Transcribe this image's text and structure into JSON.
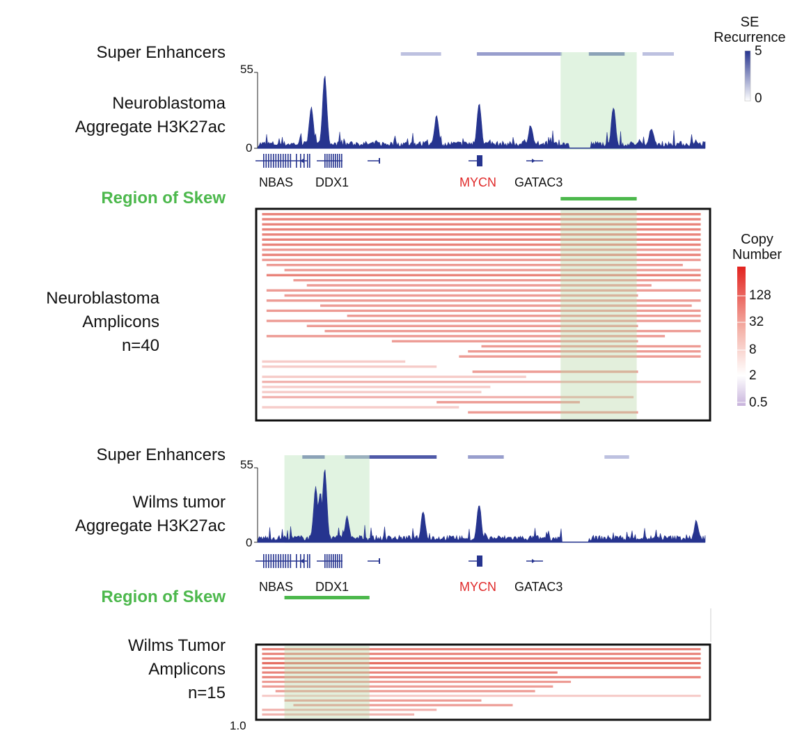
{
  "labels": {
    "se_label_1": "Super Enhancers",
    "nb_track_1": "Neuroblastoma",
    "nb_track_2": "Aggregate H3K27ac",
    "skew_1": "Region of Skew",
    "nb_amp_1": "Neuroblastoma",
    "nb_amp_2": "Amplicons",
    "nb_amp_3": "n=40",
    "se_label_2": "Super Enhancers",
    "wt_track_1": "Wilms tumor",
    "wt_track_2": "Aggregate H3K27ac",
    "skew_2": "Region of Skew",
    "wt_amp_1": "Wilms Tumor",
    "wt_amp_2": "Amplicons",
    "wt_amp_3": "n=15"
  },
  "genes": {
    "nbas": "NBAS",
    "ddx1": "DDX1",
    "mycn": "MYCN",
    "gatac3": "GATAC3"
  },
  "axis": {
    "nb_max": "55",
    "nb_min": "0",
    "wt_max": "55",
    "wt_min": "0",
    "cut_text": "1.0"
  },
  "legend_se": {
    "title_1": "SE",
    "title_2": "Recurrence",
    "max": "5",
    "min": "0"
  },
  "legend_cn": {
    "title_1": "Copy",
    "title_2": "Number",
    "ticks": [
      "128",
      "32",
      "8",
      "2",
      "0.5"
    ]
  },
  "colors": {
    "signal": "#26348f",
    "skew": "#4cb84c",
    "highlight": "#cdebcd",
    "mycn": "#e02a2a"
  },
  "chart_data": [
    {
      "type": "area",
      "title": "Neuroblastoma Aggregate H3K27ac",
      "ylim": [
        0,
        55
      ],
      "genomic_range": [
        0,
        100
      ],
      "super_enhancers": [
        {
          "start": 32,
          "end": 41,
          "recurrence": 1
        },
        {
          "start": 49,
          "end": 68,
          "recurrence": 2
        },
        {
          "start": 74,
          "end": 82,
          "recurrence": 5
        },
        {
          "start": 86,
          "end": 93,
          "recurrence": 1
        }
      ],
      "region_of_skew": [
        67.7,
        84.7
      ],
      "peaks": [
        {
          "pos": 12,
          "height": 29
        },
        {
          "pos": 15,
          "height": 52
        },
        {
          "pos": 40,
          "height": 23
        },
        {
          "pos": 49.5,
          "height": 32
        },
        {
          "pos": 61,
          "height": 16
        },
        {
          "pos": 79.5,
          "height": 29
        },
        {
          "pos": 88,
          "height": 14
        }
      ]
    },
    {
      "type": "heatmap",
      "title": "Neuroblastoma Amplicons",
      "n": 40,
      "x_range": [
        0,
        100
      ],
      "amplicons": [
        {
          "start": 1,
          "end": 99,
          "cn": 32
        },
        {
          "start": 1,
          "end": 99,
          "cn": 32
        },
        {
          "start": 1,
          "end": 99,
          "cn": 32
        },
        {
          "start": 1,
          "end": 99,
          "cn": 32
        },
        {
          "start": 1,
          "end": 99,
          "cn": 32
        },
        {
          "start": 1,
          "end": 99,
          "cn": 32
        },
        {
          "start": 1,
          "end": 99,
          "cn": 32
        },
        {
          "start": 1,
          "end": 99,
          "cn": 16
        },
        {
          "start": 1,
          "end": 99,
          "cn": 32
        },
        {
          "start": 1,
          "end": 99,
          "cn": 16
        },
        {
          "start": 2,
          "end": 95,
          "cn": 16
        },
        {
          "start": 6,
          "end": 99,
          "cn": 16
        },
        {
          "start": 2,
          "end": 99,
          "cn": 32
        },
        {
          "start": 8,
          "end": 99,
          "cn": 16
        },
        {
          "start": 11,
          "end": 88,
          "cn": 16
        },
        {
          "start": 2,
          "end": 99,
          "cn": 16
        },
        {
          "start": 6,
          "end": 85,
          "cn": 16
        },
        {
          "start": 2,
          "end": 99,
          "cn": 16
        },
        {
          "start": 14,
          "end": 97,
          "cn": 16
        },
        {
          "start": 2,
          "end": 99,
          "cn": 16
        },
        {
          "start": 20,
          "end": 99,
          "cn": 16
        },
        {
          "start": 2,
          "end": 99,
          "cn": 16
        },
        {
          "start": 11,
          "end": 85,
          "cn": 16
        },
        {
          "start": 15,
          "end": 99,
          "cn": 16
        },
        {
          "start": 2,
          "end": 91,
          "cn": 16
        },
        {
          "start": 30,
          "end": 85,
          "cn": 16
        },
        {
          "start": 50,
          "end": 99,
          "cn": 16
        },
        {
          "start": 47,
          "end": 99,
          "cn": 16
        },
        {
          "start": 45,
          "end": 99,
          "cn": 16
        },
        {
          "start": 1,
          "end": 33,
          "cn": 4
        },
        {
          "start": 1,
          "end": 40,
          "cn": 4
        },
        {
          "start": 48,
          "end": 85,
          "cn": 16
        },
        {
          "start": 1,
          "end": 60,
          "cn": 4
        },
        {
          "start": 1,
          "end": 99,
          "cn": 8
        },
        {
          "start": 1,
          "end": 52,
          "cn": 4
        },
        {
          "start": 1,
          "end": 50,
          "cn": 4
        },
        {
          "start": 1,
          "end": 84,
          "cn": 8
        },
        {
          "start": 40,
          "end": 72,
          "cn": 16
        },
        {
          "start": 1,
          "end": 45,
          "cn": 4
        },
        {
          "start": 47,
          "end": 85,
          "cn": 16
        }
      ]
    },
    {
      "type": "area",
      "title": "Wilms tumor Aggregate H3K27ac",
      "ylim": [
        0,
        55
      ],
      "genomic_range": [
        0,
        100
      ],
      "super_enhancers": [
        {
          "start": 10,
          "end": 15,
          "recurrence": 5
        },
        {
          "start": 19.5,
          "end": 40,
          "recurrence": 4
        },
        {
          "start": 47,
          "end": 55,
          "recurrence": 2
        },
        {
          "start": 77.5,
          "end": 83,
          "recurrence": 1
        }
      ],
      "region_of_skew": [
        6,
        25
      ],
      "peaks": [
        {
          "pos": 13,
          "height": 40
        },
        {
          "pos": 14,
          "height": 36
        },
        {
          "pos": 15,
          "height": 53
        },
        {
          "pos": 20,
          "height": 18
        },
        {
          "pos": 37,
          "height": 22
        },
        {
          "pos": 49.5,
          "height": 27
        },
        {
          "pos": 98,
          "height": 15
        }
      ]
    },
    {
      "type": "heatmap",
      "title": "Wilms Tumor Amplicons",
      "n": 15,
      "x_range": [
        0,
        100
      ],
      "amplicons": [
        {
          "start": 1,
          "end": 99,
          "cn": 32
        },
        {
          "start": 1,
          "end": 99,
          "cn": 32
        },
        {
          "start": 1,
          "end": 99,
          "cn": 32
        },
        {
          "start": 1,
          "end": 99,
          "cn": 64
        },
        {
          "start": 1,
          "end": 99,
          "cn": 32
        },
        {
          "start": 1,
          "end": 67,
          "cn": 32
        },
        {
          "start": 1,
          "end": 99,
          "cn": 32
        },
        {
          "start": 1,
          "end": 70,
          "cn": 16
        },
        {
          "start": 1,
          "end": 66,
          "cn": 16
        },
        {
          "start": 4,
          "end": 62,
          "cn": 16
        },
        {
          "start": 1,
          "end": 99,
          "cn": 4
        },
        {
          "start": 6,
          "end": 50,
          "cn": 16
        },
        {
          "start": 8,
          "end": 57,
          "cn": 16
        },
        {
          "start": 1,
          "end": 40,
          "cn": 8
        },
        {
          "start": 1,
          "end": 35,
          "cn": 8
        }
      ]
    }
  ]
}
